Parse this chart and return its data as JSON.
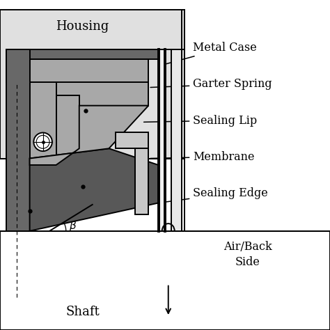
{
  "background": "#ffffff",
  "housing_color": "#e0e0e0",
  "metal_dark": "#686868",
  "rubber_mid": "#a8a8a8",
  "rubber_light": "#c8c8c8",
  "rubber_dark": "#585858",
  "wall_fill": "#e8e8e8",
  "black": "#000000",
  "labels": {
    "housing": "Housing",
    "metal_case": "Metal Case",
    "garter_spring": "Garter Spring",
    "sealing_lip": "Sealing Lip",
    "membrane": "Membrane",
    "sealing_edge": "Sealing Edge",
    "air_back_side": "Air/Back\nSide",
    "shaft": "Shaft"
  },
  "lw": 1.4,
  "label_fontsize": 11.5
}
